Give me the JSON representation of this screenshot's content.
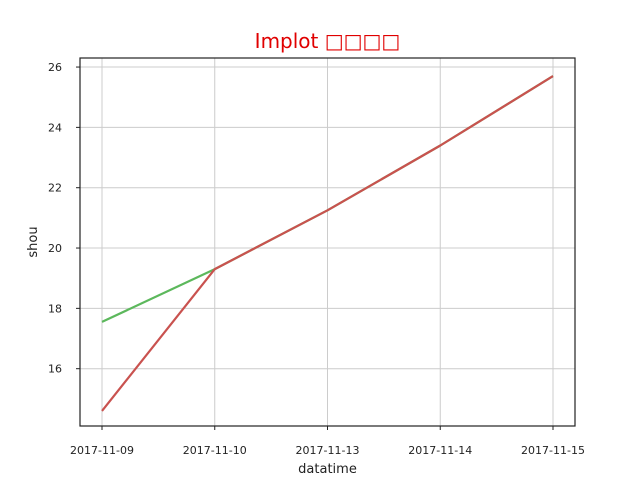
{
  "chart_data": {
    "type": "line",
    "title": "Implot □□□□",
    "title_color": "#e00000",
    "xlabel": "datatime",
    "ylabel": "shou",
    "categories": [
      "2017-11-09",
      "2017-11-10",
      "2017-11-13",
      "2017-11-14",
      "2017-11-15"
    ],
    "ylim": [
      14.1,
      26.3
    ],
    "yticks": [
      16,
      18,
      20,
      22,
      24,
      26
    ],
    "grid": true,
    "series": [
      {
        "color": "#5cb85c",
        "values": [
          17.55,
          19.3,
          21.25,
          23.4,
          25.7
        ]
      },
      {
        "color": "#c9524f",
        "values": [
          14.6,
          19.3,
          21.25,
          23.4,
          25.7
        ]
      }
    ]
  }
}
